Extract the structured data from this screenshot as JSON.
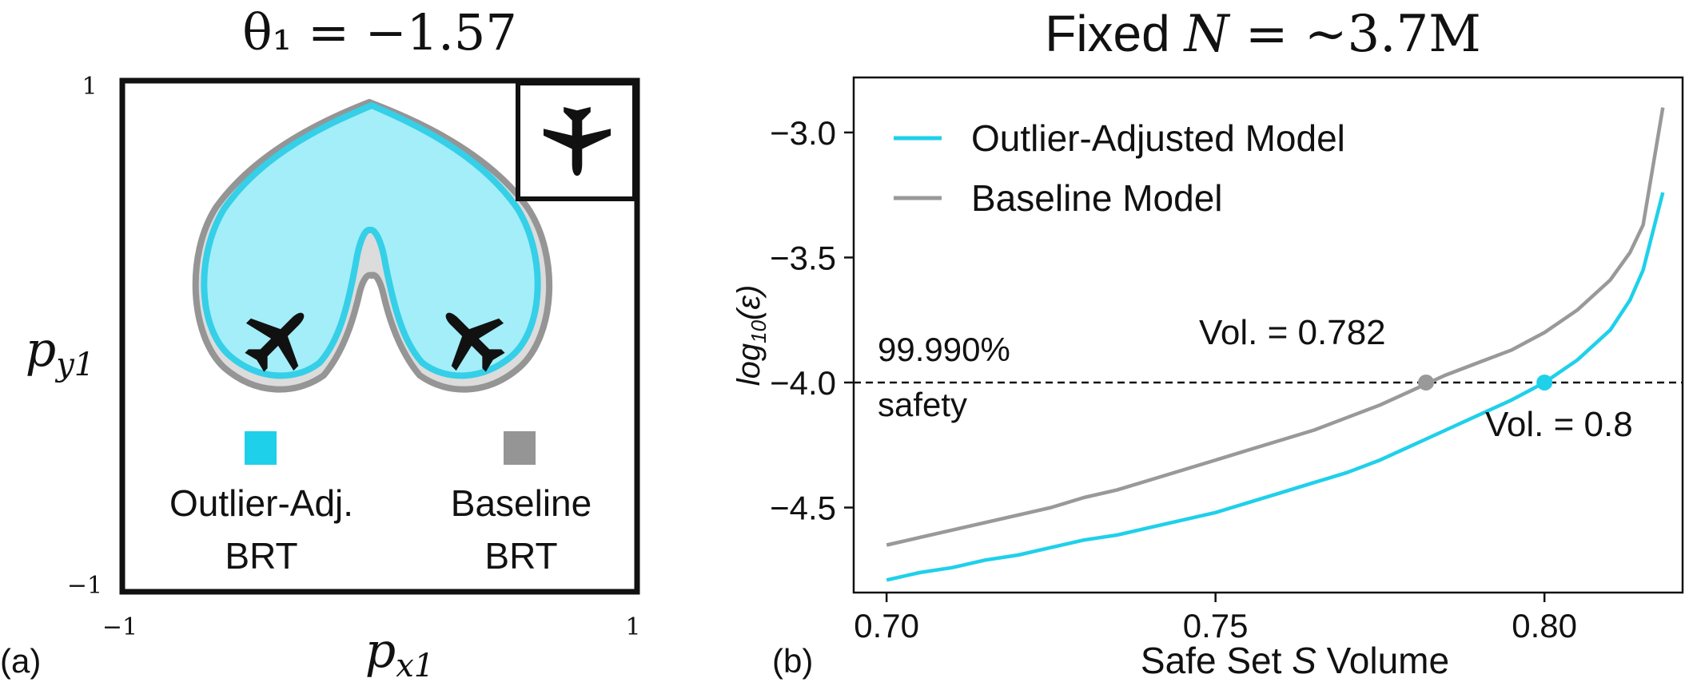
{
  "panel_a": {
    "tag": "(a)",
    "title": "θ₁ = −1.57",
    "xlabel": "p_x1",
    "ylabel": "p_y1",
    "x_min_label": "−1",
    "x_max_label": "1",
    "y_min_label": "−1",
    "y_max_label": "1",
    "legend": [
      {
        "label_line1": "Outlier-Adj.",
        "label_line2": "BRT",
        "color": "#1fd0ea"
      },
      {
        "label_line1": "Baseline",
        "label_line2": "BRT",
        "color": "#959595"
      }
    ],
    "colors": {
      "outlier_fill": "#a3eef8",
      "outlier_edge": "#35cfe8",
      "baseline_fill": "#dcdcdc",
      "baseline_edge": "#959595"
    },
    "icons": [
      "airplane-icon",
      "airplane-icon",
      "airplane-icon"
    ]
  },
  "chart_data": {
    "type": "line",
    "tag": "(b)",
    "title": "Fixed N = ~3.7M",
    "xlabel": "Safe Set S Volume",
    "ylabel": "log10(ε)",
    "xlim": [
      0.695,
      0.821
    ],
    "ylim": [
      -4.84,
      -2.78
    ],
    "xticks": [
      0.7,
      0.75,
      0.8
    ],
    "xtick_labels": [
      "0.70",
      "0.75",
      "0.80"
    ],
    "yticks": [
      -3.0,
      -3.5,
      -4.0,
      -4.5
    ],
    "ytick_labels": [
      "−3.0",
      "−3.5",
      "−4.0",
      "−4.5"
    ],
    "grid": false,
    "legend_position": "top-left",
    "series": [
      {
        "name": "Outlier-Adjusted Model",
        "color": "#1fd0ea",
        "x": [
          0.7,
          0.705,
          0.71,
          0.715,
          0.72,
          0.725,
          0.73,
          0.735,
          0.74,
          0.745,
          0.75,
          0.755,
          0.76,
          0.765,
          0.77,
          0.775,
          0.78,
          0.785,
          0.79,
          0.795,
          0.8,
          0.805,
          0.81,
          0.813,
          0.815,
          0.818
        ],
        "y": [
          -4.79,
          -4.76,
          -4.74,
          -4.71,
          -4.69,
          -4.66,
          -4.63,
          -4.61,
          -4.58,
          -4.55,
          -4.52,
          -4.48,
          -4.44,
          -4.4,
          -4.36,
          -4.31,
          -4.25,
          -4.19,
          -4.13,
          -4.07,
          -4.0,
          -3.91,
          -3.79,
          -3.67,
          -3.55,
          -3.24
        ]
      },
      {
        "name": "Baseline Model",
        "color": "#999999",
        "x": [
          0.7,
          0.705,
          0.71,
          0.715,
          0.72,
          0.725,
          0.73,
          0.735,
          0.74,
          0.745,
          0.75,
          0.755,
          0.76,
          0.765,
          0.77,
          0.775,
          0.78,
          0.785,
          0.79,
          0.795,
          0.8,
          0.805,
          0.81,
          0.813,
          0.815,
          0.818
        ],
        "y": [
          -4.65,
          -4.62,
          -4.59,
          -4.56,
          -4.53,
          -4.5,
          -4.46,
          -4.43,
          -4.39,
          -4.35,
          -4.31,
          -4.27,
          -4.23,
          -4.19,
          -4.14,
          -4.09,
          -4.03,
          -3.97,
          -3.92,
          -3.87,
          -3.8,
          -3.71,
          -3.59,
          -3.48,
          -3.37,
          -2.9
        ]
      }
    ],
    "threshold": {
      "y": -4.0,
      "label_line1": "99.990%",
      "label_line2": "safety"
    },
    "markers": [
      {
        "x": 0.782,
        "y": -4.0,
        "color": "#999999",
        "label": "Vol. = 0.782"
      },
      {
        "x": 0.8,
        "y": -4.0,
        "color": "#1fd0ea",
        "label": "Vol. = 0.8"
      }
    ]
  }
}
